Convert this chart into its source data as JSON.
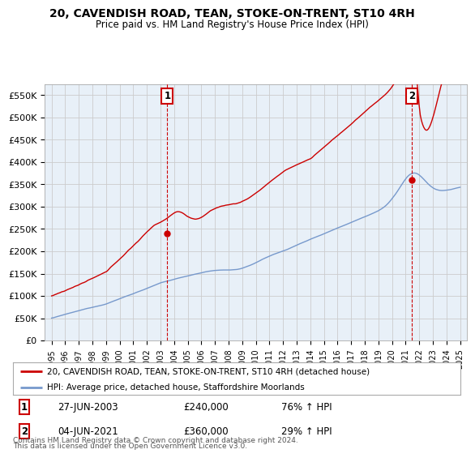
{
  "title": "20, CAVENDISH ROAD, TEAN, STOKE-ON-TRENT, ST10 4RH",
  "subtitle": "Price paid vs. HM Land Registry's House Price Index (HPI)",
  "ylabel_ticks": [
    "£0",
    "£50K",
    "£100K",
    "£150K",
    "£200K",
    "£250K",
    "£300K",
    "£350K",
    "£400K",
    "£450K",
    "£500K",
    "£550K"
  ],
  "ytick_values": [
    0,
    50000,
    100000,
    150000,
    200000,
    250000,
    300000,
    350000,
    400000,
    450000,
    500000,
    550000
  ],
  "ylim": [
    0,
    575000
  ],
  "legend_line1": "20, CAVENDISH ROAD, TEAN, STOKE-ON-TRENT, ST10 4RH (detached house)",
  "legend_line2": "HPI: Average price, detached house, Staffordshire Moorlands",
  "annotation1_label": "1",
  "annotation1_date": "27-JUN-2003",
  "annotation1_price": "£240,000",
  "annotation1_pct": "76% ↑ HPI",
  "annotation2_label": "2",
  "annotation2_date": "04-JUN-2021",
  "annotation2_price": "£360,000",
  "annotation2_pct": "29% ↑ HPI",
  "footer1": "Contains HM Land Registry data © Crown copyright and database right 2024.",
  "footer2": "This data is licensed under the Open Government Licence v3.0.",
  "line1_color": "#cc0000",
  "line2_color": "#7799cc",
  "plot_bg_color": "#e8f0f8",
  "bg_color": "#ffffff",
  "grid_color": "#cccccc",
  "point1_x": 2003.5,
  "point1_y": 240000,
  "point2_x": 2021.45,
  "point2_y": 360000,
  "xlim_left": 1994.5,
  "xlim_right": 2025.5
}
